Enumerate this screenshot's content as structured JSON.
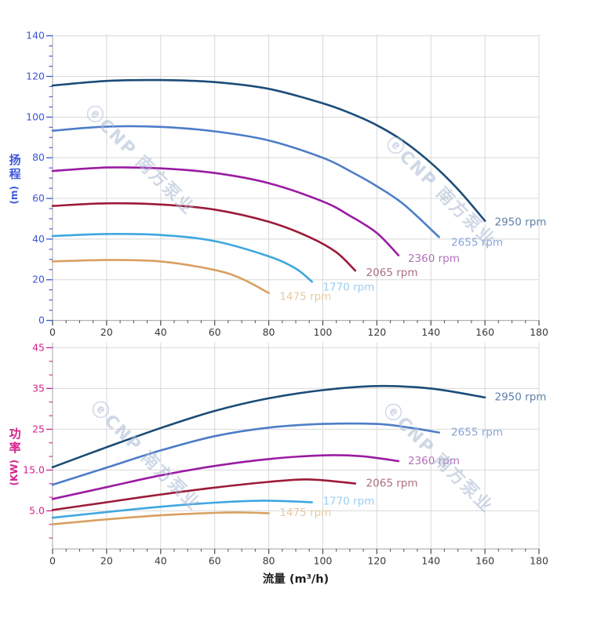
{
  "watermark": {
    "text": "ⓔCNP 南方泵业",
    "color": "#a9bad2"
  },
  "style": {
    "background": "#ffffff",
    "grid": "#d8d8d8",
    "axis": "#b3b3b3",
    "x_tick": "#4a4a4a",
    "x_label": "#3a3a3a",
    "x_title_color": "#1f1f1f"
  },
  "axes": {
    "x": {
      "title": "流量 (m³/h)",
      "min": 0,
      "max": 180,
      "tick_values": [
        0,
        20,
        40,
        60,
        80,
        100,
        120,
        140,
        160,
        180
      ],
      "tick_labels": [
        "0",
        "20",
        "40",
        "60",
        "80",
        "100",
        "120",
        "140",
        "160",
        "180"
      ],
      "minor_step": 5
    }
  },
  "chart_data": [
    {
      "type": "line",
      "title": "扬程 vs 流量 (head curves)",
      "xlabel": "流量 (m³/h)",
      "ylabel": "扬程 (m)",
      "ylim": [
        0,
        140
      ],
      "xlim": [
        0,
        180
      ],
      "grid": true,
      "legend_position": "curve-end-labels",
      "y_axis": {
        "label": "扬程",
        "unit": "(m)",
        "color": "#3c57d9",
        "ticks": [
          {
            "value": 0,
            "label": "0"
          },
          {
            "value": 20,
            "label": "20"
          },
          {
            "value": 40,
            "label": "40"
          },
          {
            "value": 60,
            "label": "60"
          },
          {
            "value": 80,
            "label": "80"
          },
          {
            "value": 100,
            "label": "100"
          },
          {
            "value": 120,
            "label": "120"
          },
          {
            "value": 140,
            "label": "140"
          }
        ],
        "minor_values": [
          5,
          10,
          15,
          25,
          30,
          35,
          45,
          50,
          55,
          65,
          70,
          75,
          85,
          90,
          95,
          105,
          110,
          115,
          125,
          130,
          135
        ]
      },
      "series": [
        {
          "name": "2950 rpm",
          "color": "#1c4c78",
          "label_color": "#5d7fa9",
          "points": [
            [
              0,
              115.5
            ],
            [
              20,
              117.8
            ],
            [
              40,
              118.2
            ],
            [
              60,
              117.2
            ],
            [
              80,
              113.9
            ],
            [
              100,
              106.8
            ],
            [
              110,
              102
            ],
            [
              120,
              96
            ],
            [
              130,
              88
            ],
            [
              140,
              77.5
            ],
            [
              150,
              64.5
            ],
            [
              160,
              49
            ]
          ],
          "label_anchor": [
            163.6,
            48.5
          ]
        },
        {
          "name": "2655 rpm",
          "color": "#4d7dc8",
          "label_color": "#87a5d9",
          "points": [
            [
              0,
              93.3
            ],
            [
              20,
              95.3
            ],
            [
              40,
              95.2
            ],
            [
              60,
              93
            ],
            [
              80,
              88.5
            ],
            [
              100,
              80
            ],
            [
              110,
              73.5
            ],
            [
              120,
              66
            ],
            [
              130,
              57
            ],
            [
              143,
              41
            ]
          ],
          "label_anchor": [
            147.5,
            38.5
          ]
        },
        {
          "name": "2360 rpm",
          "color": "#9a1ba2",
          "label_color": "#b471bb",
          "points": [
            [
              0,
              73.5
            ],
            [
              20,
              75.2
            ],
            [
              40,
              74.8
            ],
            [
              60,
              72.5
            ],
            [
              80,
              67.5
            ],
            [
              100,
              58.5
            ],
            [
              110,
              51.5
            ],
            [
              120,
              43
            ],
            [
              128,
              32
            ]
          ],
          "label_anchor": [
            131.5,
            30.5
          ]
        },
        {
          "name": "2065 rpm",
          "color": "#9c1b38",
          "label_color": "#aa6f7d",
          "points": [
            [
              0,
              56.3
            ],
            [
              20,
              57.6
            ],
            [
              40,
              57
            ],
            [
              60,
              54.5
            ],
            [
              80,
              48.5
            ],
            [
              95,
              41
            ],
            [
              105,
              33.5
            ],
            [
              112,
              24.5
            ]
          ],
          "label_anchor": [
            116,
            23.5
          ]
        },
        {
          "name": "1770 rpm",
          "color": "#3ea7e0",
          "label_color": "#9ccdf1",
          "points": [
            [
              0,
              41.5
            ],
            [
              20,
              42.5
            ],
            [
              40,
              42
            ],
            [
              60,
              39
            ],
            [
              80,
              31.5
            ],
            [
              90,
              25.5
            ],
            [
              96,
              19
            ]
          ],
          "label_anchor": [
            100,
            16.5
          ]
        },
        {
          "name": "1475 rpm",
          "color": "#d7a160",
          "label_color": "#e6caa2",
          "points": [
            [
              0,
              29
            ],
            [
              20,
              29.7
            ],
            [
              40,
              29
            ],
            [
              60,
              24.8
            ],
            [
              70,
              20.5
            ],
            [
              80,
              13.5
            ]
          ],
          "label_anchor": [
            84,
            11.8
          ]
        }
      ]
    },
    {
      "type": "line",
      "title": "功率 vs 流量 (power curves)",
      "xlabel": "流量 (m³/h)",
      "ylabel": "功率 (KW)",
      "ylim": [
        0,
        46
      ],
      "xlim": [
        0,
        180
      ],
      "grid": true,
      "legend_position": "curve-end-labels",
      "y_axis": {
        "label": "功率",
        "unit": "(KW)",
        "color": "#d3238c",
        "ticks": [
          {
            "value": 45,
            "label": "45"
          },
          {
            "value": 35,
            "label": "35"
          },
          {
            "value": 25,
            "label": "25"
          },
          {
            "value": 15,
            "label": "15.0"
          },
          {
            "value": 5,
            "label": "5.0"
          }
        ],
        "minor_values": [
          41.67,
          38.33,
          31.67,
          28.33,
          21.67,
          18.33,
          11.67,
          8.33,
          1.67,
          -1.67
        ]
      },
      "series": [
        {
          "name": "2950 rpm",
          "color": "#1c4c78",
          "label_color": "#5d7fa9",
          "points": [
            [
              0,
              15.7
            ],
            [
              20,
              20.6
            ],
            [
              40,
              25.3
            ],
            [
              60,
              29.5
            ],
            [
              80,
              32.6
            ],
            [
              100,
              34.6
            ],
            [
              120,
              35.6
            ],
            [
              140,
              35
            ],
            [
              160,
              32.8
            ]
          ],
          "label_anchor": [
            163.6,
            33
          ]
        },
        {
          "name": "2655 rpm",
          "color": "#4d7dc8",
          "label_color": "#87a5d9",
          "points": [
            [
              0,
              11.4
            ],
            [
              20,
              15.6
            ],
            [
              40,
              19.8
            ],
            [
              60,
              23.3
            ],
            [
              80,
              25.4
            ],
            [
              100,
              26.3
            ],
            [
              120,
              26.3
            ],
            [
              132,
              25.4
            ],
            [
              143,
              24.2
            ]
          ],
          "label_anchor": [
            147.5,
            24.3
          ]
        },
        {
          "name": "2360 rpm",
          "color": "#9a1ba2",
          "label_color": "#b471bb",
          "points": [
            [
              0,
              7.9
            ],
            [
              20,
              10.8
            ],
            [
              40,
              13.7
            ],
            [
              60,
              16
            ],
            [
              80,
              17.7
            ],
            [
              100,
              18.6
            ],
            [
              114,
              18.4
            ],
            [
              128,
              17.2
            ]
          ],
          "label_anchor": [
            131.5,
            17.3
          ]
        },
        {
          "name": "2065 rpm",
          "color": "#9c1b38",
          "label_color": "#aa6f7d",
          "points": [
            [
              0,
              5.2
            ],
            [
              20,
              7.1
            ],
            [
              40,
              9
            ],
            [
              60,
              10.7
            ],
            [
              80,
              12.1
            ],
            [
              95,
              12.7
            ],
            [
              112,
              11.7
            ]
          ],
          "label_anchor": [
            116,
            11.8
          ]
        },
        {
          "name": "1770 rpm",
          "color": "#3ea7e0",
          "label_color": "#9ccdf1",
          "points": [
            [
              0,
              3.3
            ],
            [
              20,
              4.7
            ],
            [
              40,
              6
            ],
            [
              60,
              7
            ],
            [
              78,
              7.5
            ],
            [
              96,
              7.1
            ]
          ],
          "label_anchor": [
            100,
            7.4
          ]
        },
        {
          "name": "1475 rpm",
          "color": "#d7a160",
          "label_color": "#e6caa2",
          "points": [
            [
              0,
              1.7
            ],
            [
              20,
              2.9
            ],
            [
              40,
              3.9
            ],
            [
              60,
              4.5
            ],
            [
              70,
              4.6
            ],
            [
              80,
              4.4
            ]
          ],
          "label_anchor": [
            84,
            4.6
          ]
        }
      ]
    }
  ]
}
